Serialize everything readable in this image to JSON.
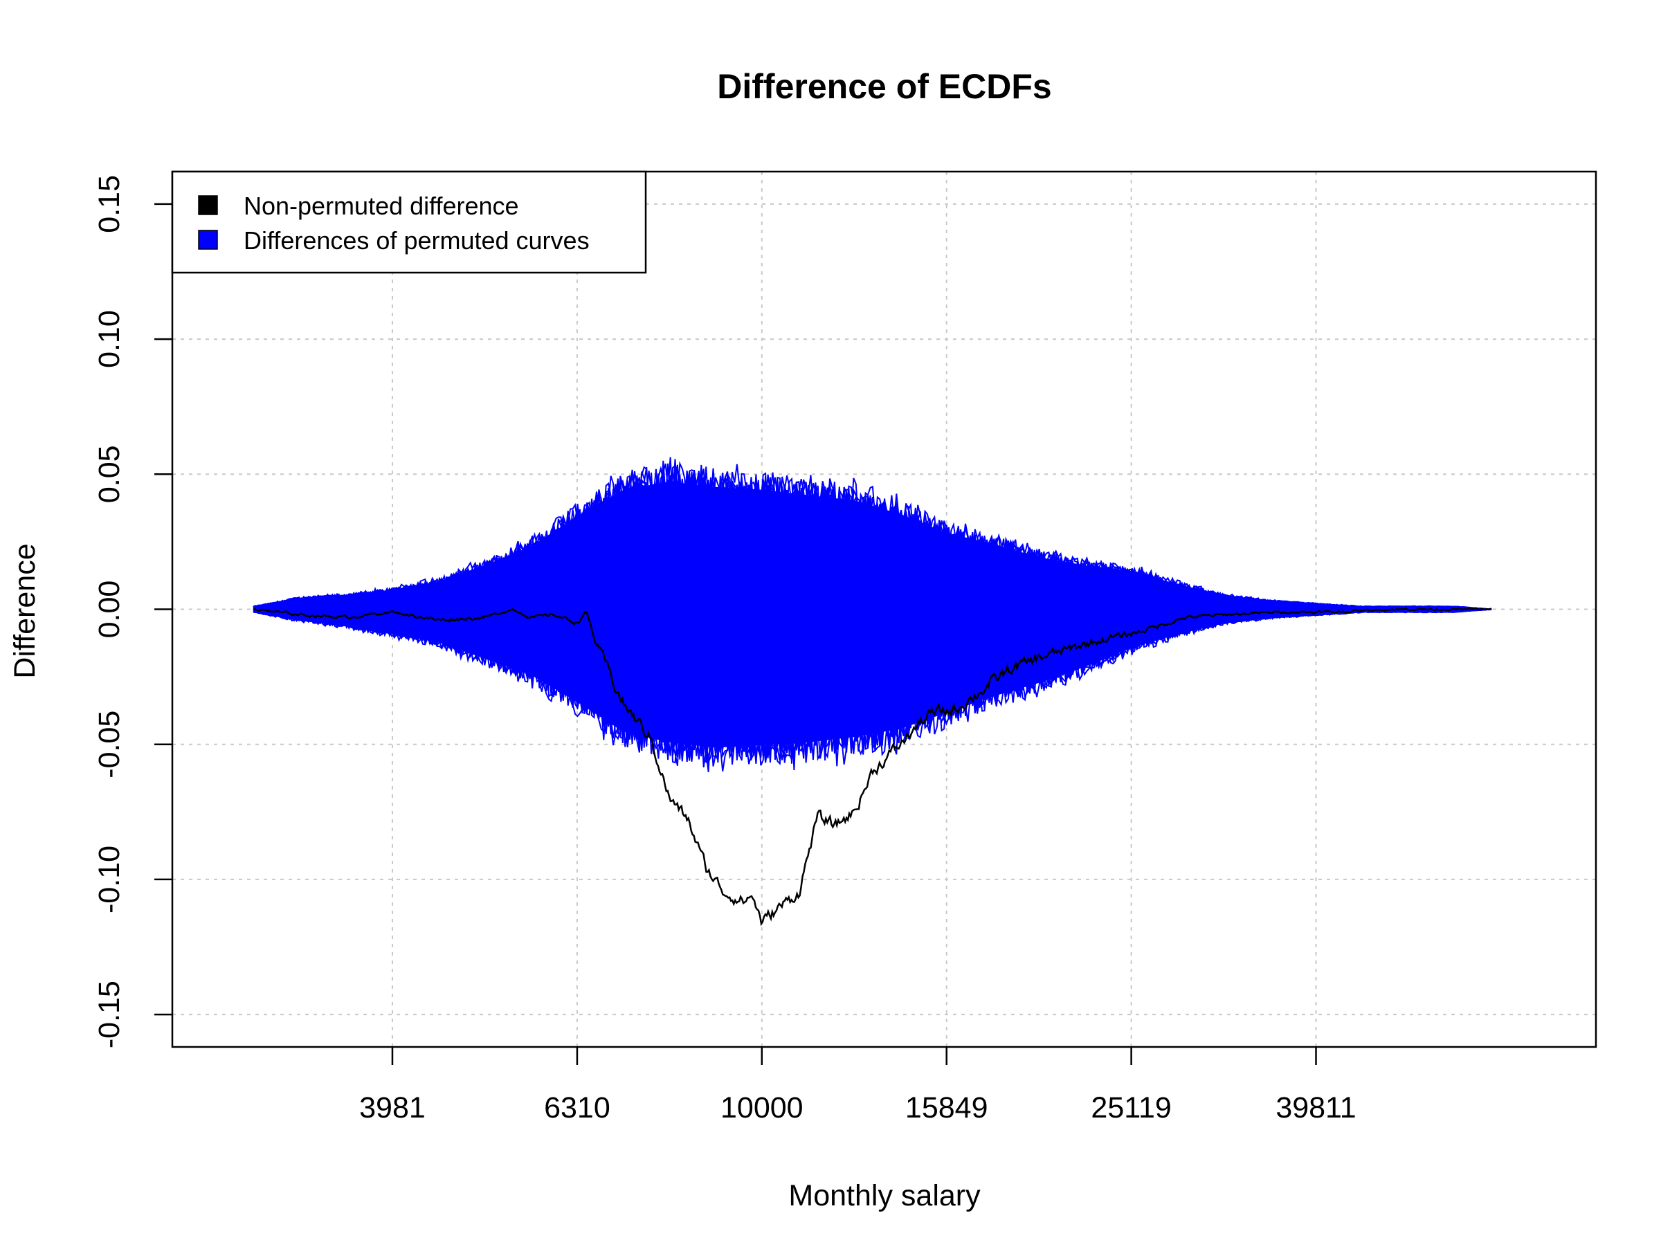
{
  "chart_data": {
    "type": "line",
    "title": "Difference of ECDFs",
    "xlabel": "Monthly salary",
    "ylabel": "Difference",
    "x_scale": "log10",
    "xlim": [
      2300,
      80000
    ],
    "ylim": [
      -0.162,
      0.162
    ],
    "x_ticks": [
      {
        "value": 3981,
        "label": "3981"
      },
      {
        "value": 6310,
        "label": "6310"
      },
      {
        "value": 10000,
        "label": "10000"
      },
      {
        "value": 15849,
        "label": "15849"
      },
      {
        "value": 25119,
        "label": "25119"
      },
      {
        "value": 39811,
        "label": "39811"
      }
    ],
    "y_ticks": [
      {
        "value": -0.15,
        "label": "-0.15"
      },
      {
        "value": -0.1,
        "label": "-0.10"
      },
      {
        "value": -0.05,
        "label": "-0.05"
      },
      {
        "value": 0.0,
        "label": "0.00"
      },
      {
        "value": 0.05,
        "label": "0.05"
      },
      {
        "value": 0.1,
        "label": "0.10"
      },
      {
        "value": 0.15,
        "label": "0.15"
      }
    ],
    "grid": true,
    "legend": {
      "placement": "top-left",
      "entries": [
        {
          "label": "Non-permuted difference",
          "color": "#000000"
        },
        {
          "label": "Differences of permuted curves",
          "color": "#0000ff"
        }
      ]
    },
    "series": [
      {
        "name": "Non-permuted difference",
        "color": "#000000",
        "x": [
          2818,
          3162,
          3548,
          3981,
          4467,
          5012,
          5370,
          5623,
          5957,
          6310,
          6457,
          6607,
          7079,
          7586,
          7943,
          8318,
          8710,
          9120,
          9550,
          9772,
          10000,
          10471,
          10965,
          11482,
          12023,
          12589,
          13183,
          14125,
          15136,
          16218,
          16982,
          17783,
          18621,
          19953,
          21380,
          22909,
          25119,
          26915,
          28840,
          31623,
          36308,
          41687,
          47863,
          54954,
          61660
        ],
        "y": [
          0.0,
          -0.002,
          -0.003,
          -0.001,
          -0.004,
          -0.003,
          0.0,
          -0.003,
          -0.002,
          -0.005,
          -0.001,
          -0.012,
          -0.035,
          -0.048,
          -0.07,
          -0.078,
          -0.096,
          -0.105,
          -0.108,
          -0.106,
          -0.116,
          -0.11,
          -0.105,
          -0.077,
          -0.08,
          -0.075,
          -0.06,
          -0.05,
          -0.039,
          -0.037,
          -0.032,
          -0.027,
          -0.022,
          -0.018,
          -0.015,
          -0.012,
          -0.009,
          -0.006,
          -0.003,
          -0.002,
          -0.001,
          -0.001,
          0.0,
          0.0,
          0.0
        ]
      },
      {
        "name": "Differences of permuted curves",
        "color": "#0000ff",
        "x": [
          2818,
          3162,
          3548,
          3981,
          4467,
          5012,
          5623,
          6310,
          7079,
          7943,
          8913,
          10000,
          11220,
          12589,
          14125,
          15849,
          17783,
          19953,
          22387,
          25119,
          28184,
          31623,
          35481,
          39811,
          44668,
          50119,
          56234,
          61660
        ],
        "upper": [
          0.001,
          0.004,
          0.005,
          0.007,
          0.01,
          0.016,
          0.023,
          0.034,
          0.044,
          0.047,
          0.045,
          0.044,
          0.042,
          0.04,
          0.035,
          0.028,
          0.024,
          0.019,
          0.016,
          0.014,
          0.009,
          0.005,
          0.003,
          0.002,
          0.001,
          0.001,
          0.001,
          0.0
        ],
        "lower": [
          -0.001,
          -0.004,
          -0.006,
          -0.009,
          -0.012,
          -0.018,
          -0.024,
          -0.034,
          -0.045,
          -0.049,
          -0.051,
          -0.05,
          -0.049,
          -0.047,
          -0.044,
          -0.038,
          -0.032,
          -0.027,
          -0.021,
          -0.014,
          -0.009,
          -0.005,
          -0.003,
          -0.002,
          -0.001,
          -0.001,
          -0.001,
          0.0
        ]
      }
    ]
  }
}
